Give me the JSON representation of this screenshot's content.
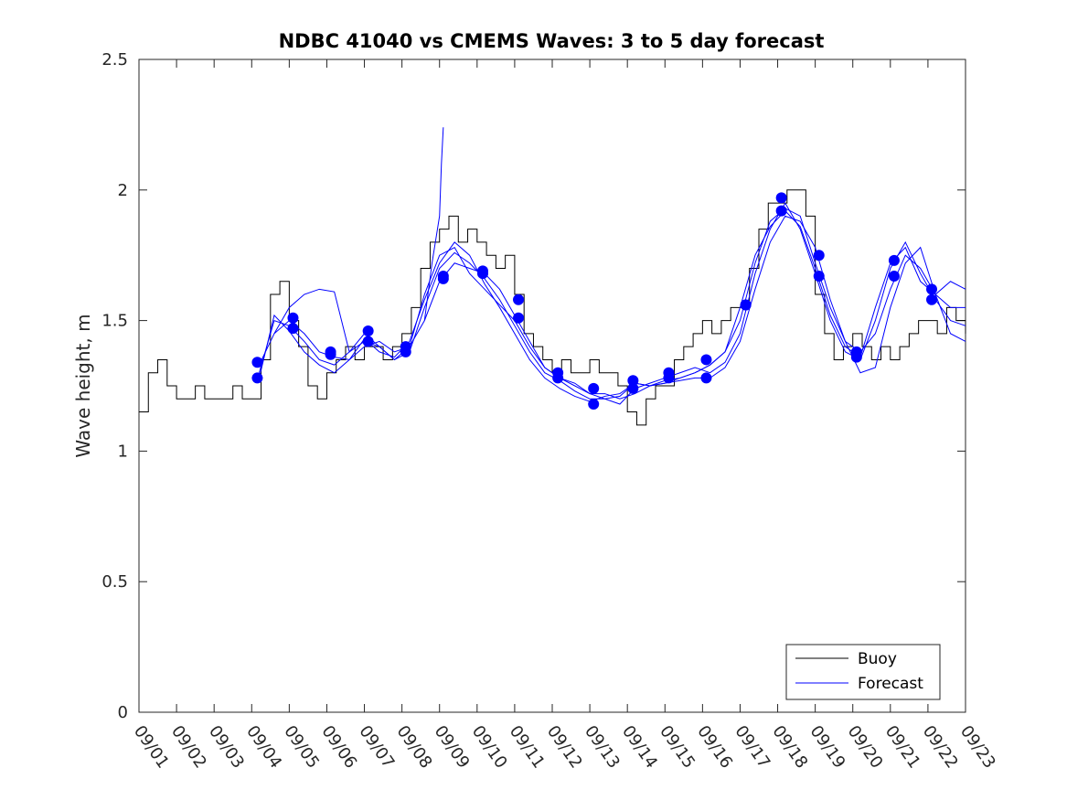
{
  "chart_data": {
    "type": "line",
    "title": "NDBC 41040 vs CMEMS Waves: 3 to 5 day forecast",
    "xlabel": "",
    "ylabel": "Wave height, m",
    "xlim": [
      "09/01",
      "09/23"
    ],
    "ylim": [
      0,
      2.5
    ],
    "x_ticks": [
      "09/01",
      "09/02",
      "09/03",
      "09/04",
      "09/05",
      "09/06",
      "09/07",
      "09/08",
      "09/09",
      "09/10",
      "09/11",
      "09/12",
      "09/13",
      "09/14",
      "09/15",
      "09/16",
      "09/17",
      "09/18",
      "09/19",
      "09/20",
      "09/21",
      "09/22",
      "09/23"
    ],
    "y_ticks": [
      "0",
      "0.5",
      "1",
      "1.5",
      "2",
      "2.5"
    ],
    "grid": false,
    "legend": {
      "placement": "bottom-right",
      "entries": [
        "Buoy",
        "Forecast"
      ]
    },
    "colors": {
      "buoy": "#000000",
      "forecast": "#0000ff"
    },
    "series": [
      {
        "name": "Buoy",
        "x": [
          1.0,
          1.25,
          1.5,
          1.75,
          2.0,
          2.25,
          2.5,
          2.75,
          3.0,
          3.25,
          3.5,
          3.75,
          4.0,
          4.25,
          4.5,
          4.75,
          5.0,
          5.25,
          5.5,
          5.75,
          6.0,
          6.25,
          6.5,
          6.75,
          7.0,
          7.25,
          7.5,
          7.75,
          8.0,
          8.25,
          8.5,
          8.75,
          9.0,
          9.25,
          9.5,
          9.75,
          10.0,
          10.25,
          10.5,
          10.75,
          11.0,
          11.25,
          11.5,
          11.75,
          12.0,
          12.25,
          12.5,
          12.75,
          13.0,
          13.25,
          13.5,
          13.75,
          14.0,
          14.25,
          14.5,
          14.75,
          15.0,
          15.25,
          15.5,
          15.75,
          16.0,
          16.25,
          16.5,
          16.75,
          17.0,
          17.25,
          17.5,
          17.75,
          18.0,
          18.25,
          18.5,
          18.75,
          19.0,
          19.25,
          19.5,
          19.75,
          20.0,
          20.25,
          20.5,
          20.75,
          21.0,
          21.25,
          21.5,
          21.75,
          22.0,
          22.25,
          22.5,
          22.75,
          23.0
        ],
        "values": [
          1.15,
          1.3,
          1.35,
          1.25,
          1.2,
          1.2,
          1.25,
          1.2,
          1.2,
          1.2,
          1.25,
          1.2,
          1.2,
          1.35,
          1.6,
          1.65,
          1.5,
          1.4,
          1.25,
          1.2,
          1.3,
          1.35,
          1.4,
          1.35,
          1.4,
          1.4,
          1.35,
          1.4,
          1.45,
          1.55,
          1.7,
          1.8,
          1.85,
          1.9,
          1.8,
          1.85,
          1.8,
          1.75,
          1.7,
          1.75,
          1.6,
          1.45,
          1.4,
          1.35,
          1.3,
          1.35,
          1.3,
          1.3,
          1.35,
          1.3,
          1.3,
          1.25,
          1.15,
          1.1,
          1.2,
          1.25,
          1.25,
          1.35,
          1.4,
          1.45,
          1.5,
          1.45,
          1.5,
          1.55,
          1.55,
          1.7,
          1.85,
          1.95,
          1.95,
          2.0,
          2.0,
          1.9,
          1.6,
          1.45,
          1.35,
          1.4,
          1.45,
          1.4,
          1.35,
          1.4,
          1.35,
          1.4,
          1.45,
          1.5,
          1.5,
          1.45,
          1.55,
          1.5,
          1.45
        ]
      },
      {
        "name": "Forecast",
        "x": [
          4.2,
          4.6,
          5.0,
          5.4,
          5.8,
          6.2,
          6.6,
          7.0,
          7.4,
          7.8,
          8.2,
          8.6,
          9.0,
          9.4,
          9.8,
          10.2,
          10.6,
          11.0,
          11.4,
          11.8,
          12.2,
          12.6,
          13.0,
          13.4,
          13.8,
          14.2,
          14.6,
          15.0,
          15.4,
          15.8,
          16.2,
          16.6,
          17.0,
          17.4,
          17.8,
          18.2,
          18.6,
          19.0,
          19.4,
          19.8,
          20.2,
          20.6,
          21.0,
          21.4,
          21.8,
          22.2,
          22.6,
          23.0
        ],
        "values": [
          1.33,
          1.45,
          1.5,
          1.45,
          1.38,
          1.36,
          1.35,
          1.4,
          1.42,
          1.38,
          1.4,
          1.5,
          1.65,
          1.72,
          1.7,
          1.68,
          1.62,
          1.52,
          1.42,
          1.32,
          1.28,
          1.25,
          1.22,
          1.22,
          1.2,
          1.22,
          1.25,
          1.27,
          1.28,
          1.3,
          1.33,
          1.38,
          1.5,
          1.72,
          1.88,
          1.93,
          1.9,
          1.72,
          1.55,
          1.42,
          1.38,
          1.45,
          1.62,
          1.75,
          1.7,
          1.6,
          1.55,
          1.55
        ]
      },
      {
        "name": "Forecast",
        "x": [
          4.2,
          4.6,
          5.0,
          5.4,
          5.8,
          6.2,
          6.6,
          7.0,
          7.4,
          7.8,
          8.2,
          8.6,
          9.0,
          9.4,
          9.8,
          10.2,
          10.6,
          11.0,
          11.4,
          11.8,
          12.2,
          12.6,
          13.0,
          13.4,
          13.8,
          14.2,
          14.6,
          15.0,
          15.4,
          15.8,
          16.2,
          16.6,
          17.0,
          17.4,
          17.8,
          18.2,
          18.6,
          19.0,
          19.4,
          19.8,
          20.2,
          20.6,
          21.0,
          21.4,
          21.8,
          22.2,
          22.6,
          23.0
        ],
        "values": [
          1.3,
          1.5,
          1.48,
          1.42,
          1.35,
          1.33,
          1.38,
          1.45,
          1.4,
          1.35,
          1.38,
          1.55,
          1.7,
          1.76,
          1.72,
          1.66,
          1.58,
          1.48,
          1.38,
          1.3,
          1.27,
          1.23,
          1.2,
          1.2,
          1.18,
          1.24,
          1.26,
          1.28,
          1.3,
          1.32,
          1.3,
          1.34,
          1.45,
          1.68,
          1.85,
          1.95,
          1.85,
          1.68,
          1.5,
          1.38,
          1.35,
          1.5,
          1.7,
          1.8,
          1.68,
          1.58,
          1.5,
          1.48
        ]
      },
      {
        "name": "Forecast",
        "x": [
          4.2,
          4.6,
          5.0,
          5.4,
          5.8,
          6.2,
          6.6,
          7.0,
          7.4,
          7.8,
          8.2,
          8.6,
          9.0,
          9.4,
          9.8,
          10.2,
          10.6,
          11.0,
          11.4,
          11.8,
          12.2,
          12.6,
          13.0,
          13.4,
          13.8,
          14.2,
          14.6,
          15.0,
          15.4,
          15.8,
          16.2,
          16.6,
          17.0,
          17.4,
          17.8,
          18.2,
          18.6,
          19.0,
          19.4,
          19.8,
          20.2,
          20.6,
          21.0,
          21.4,
          21.8,
          22.2,
          22.6,
          23.0
        ],
        "values": [
          1.28,
          1.52,
          1.46,
          1.38,
          1.33,
          1.3,
          1.35,
          1.43,
          1.38,
          1.36,
          1.42,
          1.58,
          1.72,
          1.8,
          1.75,
          1.64,
          1.55,
          1.45,
          1.35,
          1.28,
          1.24,
          1.21,
          1.19,
          1.21,
          1.22,
          1.26,
          1.25,
          1.26,
          1.27,
          1.28,
          1.28,
          1.32,
          1.42,
          1.62,
          1.8,
          1.9,
          1.88,
          1.78,
          1.58,
          1.42,
          1.3,
          1.32,
          1.55,
          1.72,
          1.78,
          1.6,
          1.45,
          1.42
        ]
      },
      {
        "name": "Forecast",
        "x": [
          4.6,
          5.0,
          5.4,
          5.8,
          6.2,
          6.6,
          7.0,
          7.4,
          7.8,
          8.2,
          8.6,
          9.0,
          9.4,
          9.8,
          10.2,
          10.6,
          11.0,
          11.4,
          11.8,
          12.2,
          12.6,
          13.0,
          13.4,
          13.8,
          14.2,
          14.6,
          15.0,
          15.4,
          15.8,
          16.2,
          16.6,
          17.0,
          17.4,
          17.8,
          18.2,
          18.6,
          19.0,
          19.4,
          19.8,
          20.2,
          20.6,
          21.0,
          21.4,
          21.8,
          22.2,
          22.6,
          23.0
        ],
        "values": [
          1.45,
          1.55,
          1.6,
          1.62,
          1.61,
          1.38,
          1.42,
          1.4,
          1.35,
          1.4,
          1.6,
          1.75,
          1.78,
          1.68,
          1.62,
          1.56,
          1.5,
          1.4,
          1.32,
          1.28,
          1.26,
          1.22,
          1.2,
          1.21,
          1.26,
          1.25,
          1.26,
          1.28,
          1.3,
          1.33,
          1.38,
          1.55,
          1.75,
          1.86,
          1.92,
          1.86,
          1.7,
          1.52,
          1.4,
          1.36,
          1.55,
          1.72,
          1.78,
          1.65,
          1.6,
          1.65,
          1.62
        ]
      },
      {
        "name": "Forecast",
        "x": [
          8.6,
          8.8,
          9.0,
          9.05,
          9.1
        ],
        "values": [
          1.5,
          1.72,
          1.9,
          2.1,
          2.24
        ]
      }
    ],
    "markers": {
      "x": [
        4.15,
        4.15,
        5.1,
        5.1,
        6.1,
        6.1,
        7.1,
        7.1,
        8.1,
        8.1,
        9.1,
        9.1,
        10.15,
        10.15,
        11.1,
        11.1,
        12.15,
        12.15,
        13.1,
        13.1,
        14.15,
        14.15,
        15.1,
        15.1,
        16.1,
        16.1,
        17.15,
        17.15,
        18.1,
        18.1,
        19.1,
        19.1,
        20.1,
        20.1,
        21.1,
        21.1,
        22.1,
        22.1
      ],
      "values": [
        1.34,
        1.28,
        1.51,
        1.47,
        1.38,
        1.37,
        1.46,
        1.42,
        1.4,
        1.38,
        1.67,
        1.66,
        1.69,
        1.68,
        1.58,
        1.51,
        1.3,
        1.28,
        1.24,
        1.18,
        1.27,
        1.24,
        1.3,
        1.28,
        1.35,
        1.28,
        1.56,
        1.56,
        1.97,
        1.92,
        1.75,
        1.67,
        1.38,
        1.36,
        1.73,
        1.67,
        1.62,
        1.58
      ]
    }
  }
}
